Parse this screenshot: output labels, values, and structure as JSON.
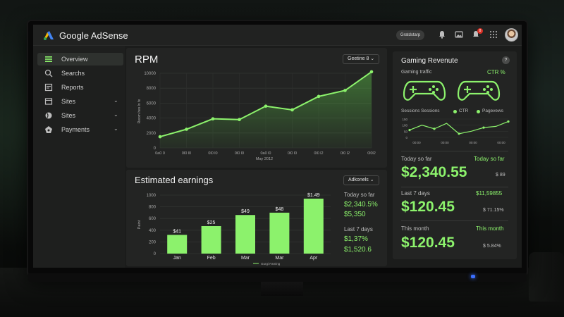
{
  "app": {
    "brand": "Google AdSense",
    "account_pill": "Gratdstarp",
    "notification_count": "8"
  },
  "sidebar": {
    "items": [
      {
        "label": "Overview",
        "icon": "menu-icon",
        "active": true
      },
      {
        "label": "Searchs",
        "icon": "search-icon"
      },
      {
        "label": "Reports",
        "icon": "report-icon"
      },
      {
        "label": "Sites",
        "icon": "sites-icon",
        "chevron": true
      },
      {
        "label": "Sites",
        "icon": "globe-icon",
        "chevron": true
      },
      {
        "label": "Payments",
        "icon": "payments-icon",
        "chevron": true
      }
    ]
  },
  "rpm": {
    "title": "RPM",
    "dropdown": "Geetine 8 ⌄",
    "chart_data": {
      "type": "area",
      "ylabel": "Rwom hes ln fe",
      "xlabel": "May 2012",
      "x_ticks": [
        "0a0 0",
        "0l0 l0",
        "0l0 l0",
        "0l0 l0",
        "0a0 l0",
        "0l0 l0",
        "0l0 l2",
        "0l0 l2",
        "0l0l2"
      ],
      "y_ticks": [
        0,
        2000,
        4000,
        6000,
        8000,
        10000
      ],
      "ylim": [
        0,
        10000
      ],
      "x": [
        0,
        1,
        2,
        3,
        4,
        5,
        6,
        7,
        8
      ],
      "values": [
        1500,
        2500,
        3900,
        3800,
        5600,
        5100,
        6900,
        7700,
        10200
      ],
      "line_color": "#8cf26c"
    }
  },
  "earnings": {
    "title": "Estimated earnings",
    "dropdown": "Adkonels ⌄",
    "legend": "Gurgi Faming",
    "chart_data": {
      "type": "bar",
      "ylabel": "Paint",
      "categories": [
        "Jan",
        "Feb",
        "Mar",
        "Mar",
        "Apr"
      ],
      "values": [
        320,
        470,
        660,
        700,
        940
      ],
      "data_labels": [
        "$41",
        "$25",
        "$49",
        "$48",
        "$1.49"
      ],
      "y_ticks": [
        0,
        200,
        400,
        600,
        800,
        1000
      ],
      "ylim": [
        0,
        1000
      ],
      "bar_color": "#8cf26c"
    },
    "stats": {
      "today_label": "Today so far",
      "today_value": "$2,340.5%",
      "today_sub": "$5,350",
      "week_label": "Last 7 days",
      "week_value": "$1,37%",
      "week_sub": "$1,520.6"
    }
  },
  "gaming": {
    "title": "Gaming Revenute",
    "help": "?",
    "traffic_label": "Gaming traffic",
    "ctr_label": "CTR  %",
    "sessions_label": "Sessions Sessions",
    "legend_ctr": "CTR",
    "legend_pageviews": "Pagevews",
    "chart_data": {
      "type": "line",
      "y_ticks": [
        0,
        50,
        100,
        150
      ],
      "x_ticks": [
        "00:00",
        "00:00",
        "00:00",
        "00:00"
      ],
      "ylim": [
        0,
        150
      ],
      "values": [
        60,
        100,
        70,
        115,
        30,
        50,
        80,
        90,
        130
      ]
    },
    "stats": [
      {
        "label": "Today so far",
        "right_label": "Today so far",
        "value": "$2,340.55",
        "side": "$ 89"
      },
      {
        "label": "Last 7 days",
        "right_label": "$11,59855",
        "value": "$120.45",
        "side": "$ 71.15%"
      },
      {
        "label": "This month",
        "right_label": "This month",
        "value": "$120.45",
        "side": "$ 5.84%"
      }
    ]
  }
}
